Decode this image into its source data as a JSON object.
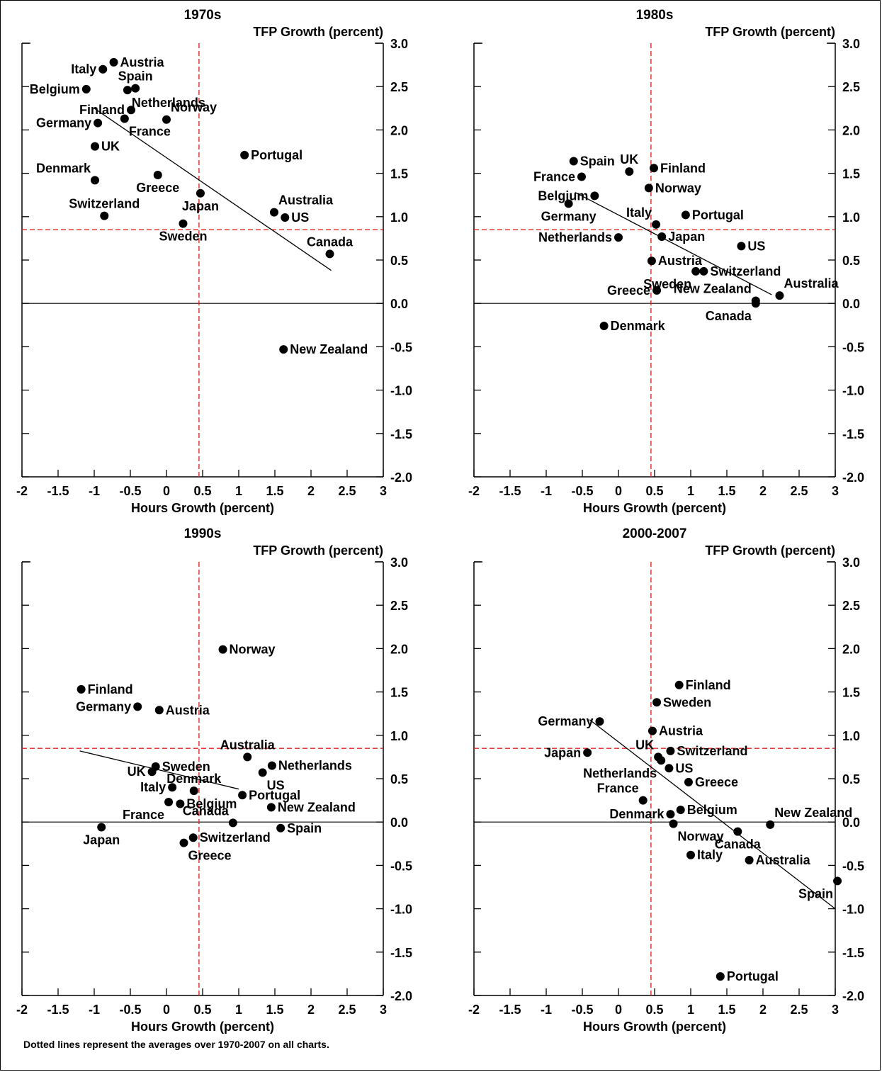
{
  "footnote": "Dotted lines represent the averages over 1970-2007 on all charts.",
  "chart_data": [
    {
      "type": "scatter",
      "title": "1970s",
      "xlabel": "Hours Growth (percent)",
      "ylabel": "TFP Growth (percent)",
      "xlim": [
        -2,
        3
      ],
      "ylim": [
        -2,
        3
      ],
      "xticks": [
        "-2",
        "-1.5",
        "-1",
        "-0.5",
        "0",
        "0.5",
        "1",
        "1.5",
        "2",
        "2.5",
        "3"
      ],
      "yticks": [
        "3.0",
        "2.5",
        "2.0",
        "1.5",
        "1.0",
        "0.5",
        "0.0",
        "-0.5",
        "-1.0",
        "-1.5",
        "-2.0"
      ],
      "avg_x": 0.45,
      "avg_y": 0.85,
      "trendline": [
        [
          -1.0,
          2.25
        ],
        [
          2.28,
          0.38
        ]
      ],
      "points": [
        {
          "label": "Italy",
          "x": -0.88,
          "y": 2.7,
          "side": "left"
        },
        {
          "label": "Austria",
          "x": -0.73,
          "y": 2.78,
          "side": "right"
        },
        {
          "label": "Belgium",
          "x": -1.11,
          "y": 2.47,
          "side": "left"
        },
        {
          "label": "Spain",
          "x": -0.43,
          "y": 2.48,
          "side": "above"
        },
        {
          "label": "Netherlands",
          "x": -0.54,
          "y": 2.46,
          "side": "below-right"
        },
        {
          "label": "Finland",
          "x": -0.49,
          "y": 2.23,
          "side": "left"
        },
        {
          "label": "Norway",
          "x": 0.0,
          "y": 2.12,
          "side": "above-right"
        },
        {
          "label": "France",
          "x": -0.58,
          "y": 2.13,
          "side": "below-right"
        },
        {
          "label": "Germany",
          "x": -0.95,
          "y": 2.08,
          "side": "left"
        },
        {
          "label": "UK",
          "x": -0.99,
          "y": 1.81,
          "side": "right"
        },
        {
          "label": "Portugal",
          "x": 1.08,
          "y": 1.71,
          "side": "right"
        },
        {
          "label": "Denmark",
          "x": -0.99,
          "y": 1.42,
          "side": "above-left"
        },
        {
          "label": "Greece",
          "x": -0.12,
          "y": 1.48,
          "side": "below"
        },
        {
          "label": "Japan",
          "x": 0.47,
          "y": 1.27,
          "side": "below"
        },
        {
          "label": "Switzerland",
          "x": -0.86,
          "y": 1.01,
          "side": "above"
        },
        {
          "label": "Australia",
          "x": 1.49,
          "y": 1.05,
          "side": "above-right"
        },
        {
          "label": "US",
          "x": 1.64,
          "y": 0.99,
          "side": "right"
        },
        {
          "label": "Sweden",
          "x": 0.23,
          "y": 0.92,
          "side": "below"
        },
        {
          "label": "Canada",
          "x": 2.26,
          "y": 0.57,
          "side": "above"
        },
        {
          "label": "New Zealand",
          "x": 1.62,
          "y": -0.53,
          "side": "right"
        }
      ]
    },
    {
      "type": "scatter",
      "title": "1980s",
      "xlabel": "Hours Growth (percent)",
      "ylabel": "TFP Growth (percent)",
      "xlim": [
        -2,
        3
      ],
      "ylim": [
        -2,
        3
      ],
      "xticks": [
        "-2",
        "-1.5",
        "-1",
        "-0.5",
        "0",
        "0.5",
        "1",
        "1.5",
        "2",
        "2.5",
        "3"
      ],
      "yticks": [
        "3.0",
        "2.5",
        "2.0",
        "1.5",
        "1.0",
        "0.5",
        "0.0",
        "-0.5",
        "-1.0",
        "-1.5",
        "-2.0"
      ],
      "avg_x": 0.45,
      "avg_y": 0.85,
      "trendline": [
        [
          -0.6,
          1.28
        ],
        [
          2.12,
          0.1
        ]
      ],
      "points": [
        {
          "label": "Spain",
          "x": -0.62,
          "y": 1.64,
          "side": "right"
        },
        {
          "label": "UK",
          "x": 0.15,
          "y": 1.52,
          "side": "above"
        },
        {
          "label": "Finland",
          "x": 0.49,
          "y": 1.56,
          "side": "right"
        },
        {
          "label": "France",
          "x": -0.51,
          "y": 1.46,
          "side": "left"
        },
        {
          "label": "Norway",
          "x": 0.42,
          "y": 1.33,
          "side": "right"
        },
        {
          "label": "Belgium",
          "x": -0.33,
          "y": 1.24,
          "side": "left"
        },
        {
          "label": "Germany",
          "x": -0.69,
          "y": 1.15,
          "side": "below"
        },
        {
          "label": "Italy",
          "x": 0.52,
          "y": 0.91,
          "side": "above-left"
        },
        {
          "label": "Portugal",
          "x": 0.93,
          "y": 1.02,
          "side": "right"
        },
        {
          "label": "Netherlands",
          "x": 0.0,
          "y": 0.76,
          "side": "left"
        },
        {
          "label": "Japan",
          "x": 0.6,
          "y": 0.77,
          "side": "right"
        },
        {
          "label": "US",
          "x": 1.7,
          "y": 0.66,
          "side": "right"
        },
        {
          "label": "Austria",
          "x": 0.46,
          "y": 0.49,
          "side": "right"
        },
        {
          "label": "Sweden",
          "x": 1.07,
          "y": 0.37,
          "side": "below-left"
        },
        {
          "label": "Switzerland",
          "x": 1.18,
          "y": 0.37,
          "side": "right"
        },
        {
          "label": "Greece",
          "x": 0.53,
          "y": 0.15,
          "side": "left"
        },
        {
          "label": "New Zealand",
          "x": 1.9,
          "y": 0.03,
          "side": "above-left"
        },
        {
          "label": "Canada",
          "x": 1.9,
          "y": 0.0,
          "side": "below-left"
        },
        {
          "label": "Australia",
          "x": 2.23,
          "y": 0.09,
          "side": "above-right"
        },
        {
          "label": "Denmark",
          "x": -0.2,
          "y": -0.26,
          "side": "right"
        }
      ]
    },
    {
      "type": "scatter",
      "title": "1990s",
      "xlabel": "Hours Growth (percent)",
      "ylabel": "TFP Growth (percent)",
      "xlim": [
        -2,
        3
      ],
      "ylim": [
        -2,
        3
      ],
      "xticks": [
        "-2",
        "-1.5",
        "-1",
        "-0.5",
        "0",
        "0.5",
        "1",
        "1.5",
        "2",
        "2.5",
        "3"
      ],
      "yticks": [
        "3.0",
        "2.5",
        "2.0",
        "1.5",
        "1.0",
        "0.5",
        "0.0",
        "-0.5",
        "-1.0",
        "-1.5",
        "-2.0"
      ],
      "avg_x": 0.45,
      "avg_y": 0.85,
      "trendline": [
        [
          -1.2,
          0.82
        ],
        [
          1.0,
          0.38
        ]
      ],
      "points": [
        {
          "label": "Norway",
          "x": 0.78,
          "y": 1.99,
          "side": "right"
        },
        {
          "label": "Finland",
          "x": -1.18,
          "y": 1.53,
          "side": "right"
        },
        {
          "label": "Germany",
          "x": -0.4,
          "y": 1.33,
          "side": "left"
        },
        {
          "label": "Austria",
          "x": -0.1,
          "y": 1.29,
          "side": "right"
        },
        {
          "label": "Australia",
          "x": 1.12,
          "y": 0.75,
          "side": "above"
        },
        {
          "label": "Netherlands",
          "x": 1.46,
          "y": 0.65,
          "side": "right"
        },
        {
          "label": "Sweden",
          "x": -0.15,
          "y": 0.64,
          "side": "right"
        },
        {
          "label": "UK",
          "x": -0.2,
          "y": 0.58,
          "side": "left"
        },
        {
          "label": "US",
          "x": 1.33,
          "y": 0.57,
          "side": "below-right"
        },
        {
          "label": "Italy",
          "x": 0.08,
          "y": 0.4,
          "side": "left"
        },
        {
          "label": "Denmark",
          "x": 0.38,
          "y": 0.36,
          "side": "above"
        },
        {
          "label": "Portugal",
          "x": 1.05,
          "y": 0.31,
          "side": "right"
        },
        {
          "label": "France",
          "x": 0.03,
          "y": 0.23,
          "side": "below-left"
        },
        {
          "label": "Belgium",
          "x": 0.19,
          "y": 0.21,
          "side": "right"
        },
        {
          "label": "New Zealand",
          "x": 1.45,
          "y": 0.17,
          "side": "right"
        },
        {
          "label": "Canada",
          "x": 0.92,
          "y": -0.01,
          "side": "above-left"
        },
        {
          "label": "Japan",
          "x": -0.9,
          "y": -0.06,
          "side": "below"
        },
        {
          "label": "Spain",
          "x": 1.58,
          "y": -0.07,
          "side": "right"
        },
        {
          "label": "Switzerland",
          "x": 0.37,
          "y": -0.18,
          "side": "right"
        },
        {
          "label": "Greece",
          "x": 0.24,
          "y": -0.24,
          "side": "below-right"
        }
      ]
    },
    {
      "type": "scatter",
      "title": "2000-2007",
      "xlabel": "Hours Growth (percent)",
      "ylabel": "TFP Growth (percent)",
      "xlim": [
        -2,
        3
      ],
      "ylim": [
        -2,
        3
      ],
      "xticks": [
        "-2",
        "-1.5",
        "-1",
        "-0.5",
        "0",
        "0.5",
        "1",
        "1.5",
        "2",
        "2.5",
        "3"
      ],
      "yticks": [
        "3.0",
        "2.5",
        "2.0",
        "1.5",
        "1.0",
        "0.5",
        "0.0",
        "-0.5",
        "-1.0",
        "-1.5",
        "-2.0"
      ],
      "avg_x": 0.45,
      "avg_y": 0.85,
      "trendline": [
        [
          -0.4,
          1.18
        ],
        [
          3.0,
          -1.0
        ]
      ],
      "points": [
        {
          "label": "Finland",
          "x": 0.84,
          "y": 1.58,
          "side": "right"
        },
        {
          "label": "Sweden",
          "x": 0.53,
          "y": 1.38,
          "side": "right"
        },
        {
          "label": "Germany",
          "x": -0.26,
          "y": 1.16,
          "side": "left"
        },
        {
          "label": "Austria",
          "x": 0.47,
          "y": 1.05,
          "side": "right"
        },
        {
          "label": "Switzerland",
          "x": 0.72,
          "y": 0.82,
          "side": "right"
        },
        {
          "label": "UK",
          "x": 0.55,
          "y": 0.75,
          "side": "above-left"
        },
        {
          "label": "Japan",
          "x": -0.43,
          "y": 0.8,
          "side": "left"
        },
        {
          "label": "Netherlands",
          "x": 0.59,
          "y": 0.71,
          "side": "below-left"
        },
        {
          "label": "US",
          "x": 0.7,
          "y": 0.62,
          "side": "right"
        },
        {
          "label": "Greece",
          "x": 0.97,
          "y": 0.46,
          "side": "right"
        },
        {
          "label": "France",
          "x": 0.34,
          "y": 0.25,
          "side": "above-left"
        },
        {
          "label": "Belgium",
          "x": 0.86,
          "y": 0.14,
          "side": "right"
        },
        {
          "label": "Denmark",
          "x": 0.72,
          "y": 0.09,
          "side": "left"
        },
        {
          "label": "New Zealand",
          "x": 2.1,
          "y": -0.03,
          "side": "above-right"
        },
        {
          "label": "Norway",
          "x": 0.76,
          "y": -0.02,
          "side": "below-right"
        },
        {
          "label": "Canada",
          "x": 1.65,
          "y": -0.11,
          "side": "below"
        },
        {
          "label": "Italy",
          "x": 1.0,
          "y": -0.38,
          "side": "right"
        },
        {
          "label": "Australia",
          "x": 1.81,
          "y": -0.44,
          "side": "right"
        },
        {
          "label": "Spain",
          "x": 3.03,
          "y": -0.68,
          "side": "below-left"
        },
        {
          "label": "Portugal",
          "x": 1.41,
          "y": -1.78,
          "side": "right"
        }
      ]
    }
  ]
}
